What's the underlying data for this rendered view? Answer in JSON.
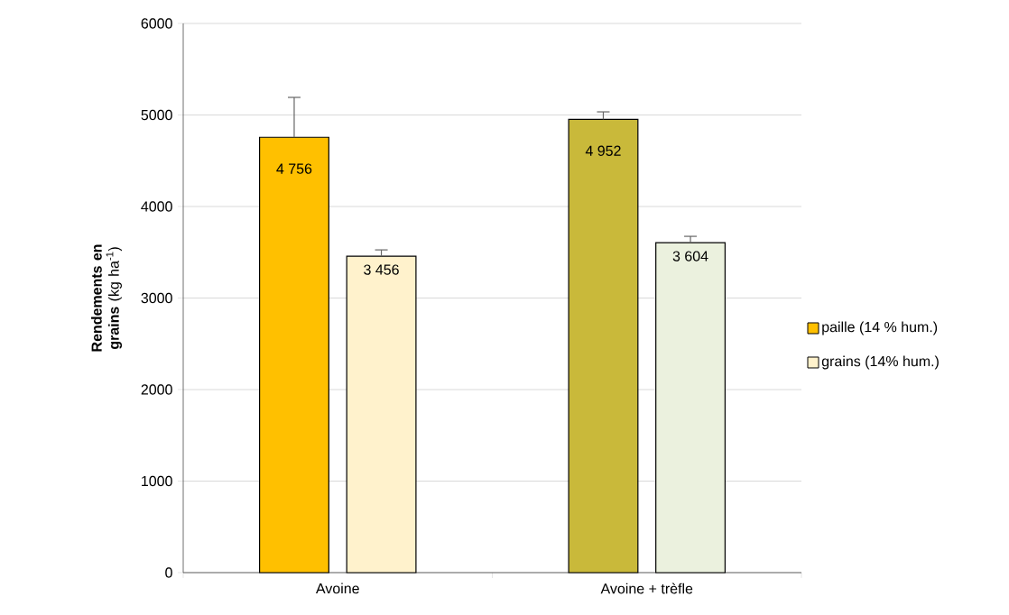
{
  "chart_data": {
    "type": "bar",
    "ylabel": "**Rendements en grains** (kg ha$^{-1}$)",
    "categories": [
      "Avoine",
      "Avoine + trèfle"
    ],
    "series": [
      {
        "name": "paille (14 % hum.)",
        "color": "#ffc000",
        "colors": [
          "#ffc000",
          "#c9b93a"
        ],
        "values": [
          4756,
          4952
        ],
        "errors": [
          [
            4756,
            5192
          ],
          [
            4952,
            5034
          ]
        ],
        "value_labels": [
          "4 756",
          "4 952"
        ]
      },
      {
        "name": "grains  (14% hum.)",
        "color": "#fff2cc",
        "colors": [
          "#fff2cc",
          "#ebf1de"
        ],
        "values": [
          3456,
          3604
        ],
        "errors": [
          [
            3456,
            3526
          ],
          [
            3604,
            3674
          ]
        ],
        "value_labels": [
          "3 456",
          "3 604"
        ]
      }
    ],
    "ylim": [
      0,
      6000
    ],
    "yticks": [
      0,
      1000,
      2000,
      3000,
      4000,
      5000,
      6000
    ],
    "grid": "y",
    "legend": "right"
  }
}
